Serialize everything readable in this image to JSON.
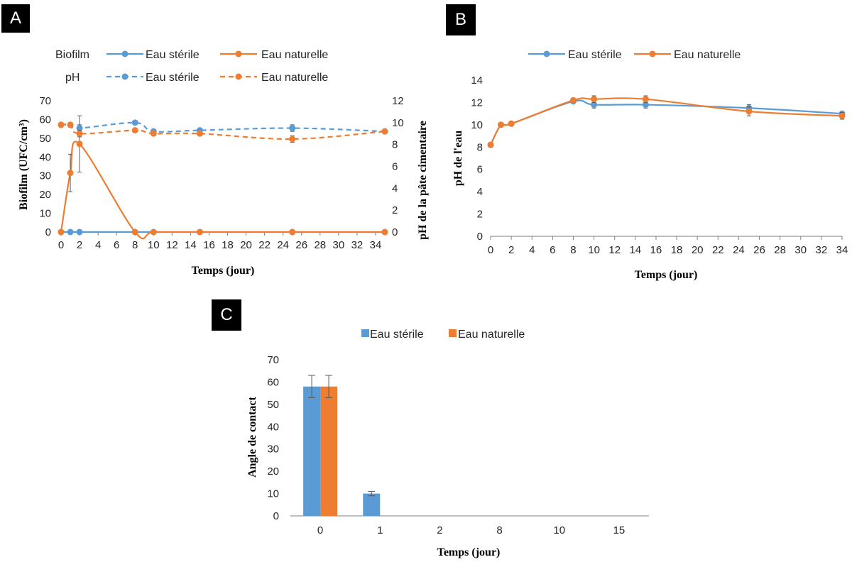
{
  "panels": {
    "a": "A",
    "b": "B",
    "c": "C"
  },
  "colors": {
    "blue": "#5B9BD5",
    "orange": "#ED7D31",
    "axis": "#7F7F7F",
    "err": "#595959"
  },
  "chart_data": [
    {
      "id": "A",
      "type": "line",
      "xlabel": "Temps (jour)",
      "ylabel": "Biofilm (UFC/cm³)",
      "y2label": "pH de la pâte cimentaire",
      "xlim": [
        0,
        35
      ],
      "ylim": [
        0,
        70
      ],
      "y2lim": [
        0,
        12
      ],
      "xticks": [
        "0",
        "2",
        "4",
        "6",
        "8",
        "10",
        "12",
        "14",
        "16",
        "18",
        "20",
        "22",
        "24",
        "26",
        "28",
        "30",
        "32",
        "34"
      ],
      "yticks": [
        "0",
        "10",
        "20",
        "30",
        "40",
        "50",
        "60",
        "70"
      ],
      "y2ticks": [
        "0",
        "2",
        "4",
        "6",
        "8",
        "10",
        "12"
      ],
      "legend_groups": {
        "biofilm": "Biofilm",
        "ph": "pH"
      },
      "series_names": {
        "sterile": "Eau stérile",
        "naturelle": "Eau naturelle"
      },
      "series": [
        {
          "name": "Eau stérile",
          "group": "Biofilm",
          "axis": "left",
          "style": "solid",
          "color": "#5B9BD5",
          "x": [
            0,
            1,
            2,
            8,
            10,
            15,
            25,
            35
          ],
          "y": [
            0,
            0,
            0,
            0,
            0,
            0,
            0,
            0
          ],
          "err": [
            0,
            0,
            0,
            0,
            0,
            0,
            0,
            0
          ]
        },
        {
          "name": "Eau naturelle",
          "group": "Biofilm",
          "axis": "left",
          "style": "solid",
          "color": "#ED7D31",
          "x": [
            0,
            1,
            2,
            8,
            10,
            15,
            25,
            35
          ],
          "y": [
            0,
            31.5,
            47,
            0,
            0,
            0,
            0,
            0
          ],
          "err": [
            0,
            10,
            15,
            0,
            0,
            0,
            0,
            0
          ]
        },
        {
          "name": "Eau stérile",
          "group": "pH",
          "axis": "right",
          "style": "dashed",
          "color": "#5B9BD5",
          "x": [
            0,
            1,
            2,
            8,
            10,
            15,
            25,
            35
          ],
          "y": [
            9.8,
            9.8,
            9.5,
            10.0,
            9.2,
            9.3,
            9.5,
            9.2
          ],
          "err": [
            0,
            0,
            0.3,
            0,
            0.2,
            0.1,
            0.3,
            0
          ]
        },
        {
          "name": "Eau naturelle",
          "group": "pH",
          "axis": "right",
          "style": "dashed",
          "color": "#ED7D31",
          "x": [
            0,
            1,
            2,
            8,
            10,
            15,
            25,
            35
          ],
          "y": [
            9.8,
            9.8,
            9.0,
            9.3,
            9.0,
            9.0,
            8.5,
            9.2
          ],
          "err": [
            0,
            0,
            0.3,
            0.1,
            0.1,
            0.1,
            0.3,
            0
          ]
        }
      ]
    },
    {
      "id": "B",
      "type": "line",
      "xlabel": "Temps (jour)",
      "ylabel": "pH de l'eau",
      "xlim": [
        0,
        34
      ],
      "ylim": [
        0,
        14
      ],
      "xticks": [
        "0",
        "2",
        "4",
        "6",
        "8",
        "10",
        "12",
        "14",
        "16",
        "18",
        "20",
        "22",
        "24",
        "26",
        "28",
        "30",
        "32",
        "34"
      ],
      "yticks": [
        "0",
        "2",
        "4",
        "6",
        "8",
        "10",
        "12",
        "14"
      ],
      "series": [
        {
          "name": "Eau stérile",
          "color": "#5B9BD5",
          "x": [
            0,
            1,
            2,
            8,
            10,
            15,
            25,
            34
          ],
          "y": [
            8.2,
            10.0,
            10.1,
            12.1,
            11.8,
            11.8,
            11.5,
            11.0
          ],
          "err": [
            0,
            0,
            0,
            0.1,
            0.3,
            0.3,
            0.3,
            0.2
          ]
        },
        {
          "name": "Eau naturelle",
          "color": "#ED7D31",
          "x": [
            0,
            1,
            2,
            8,
            10,
            15,
            25,
            34
          ],
          "y": [
            8.2,
            10.0,
            10.1,
            12.2,
            12.3,
            12.3,
            11.2,
            10.8
          ],
          "err": [
            0,
            0,
            0,
            0.1,
            0.3,
            0.3,
            0.4,
            0.3
          ]
        }
      ]
    },
    {
      "id": "C",
      "type": "bar",
      "xlabel": "Temps (jour)",
      "ylabel": "Angle de contact",
      "categories": [
        "0",
        "1",
        "2",
        "8",
        "10",
        "15"
      ],
      "ylim": [
        0,
        70
      ],
      "yticks": [
        "0",
        "10",
        "20",
        "30",
        "40",
        "50",
        "60",
        "70"
      ],
      "series": [
        {
          "name": "Eau stérile",
          "color": "#5B9BD5",
          "values": [
            58,
            10,
            0,
            0,
            0,
            0
          ],
          "err": [
            5,
            1,
            0,
            0,
            0,
            0
          ]
        },
        {
          "name": "Eau naturelle",
          "color": "#ED7D31",
          "values": [
            58,
            0,
            0,
            0,
            0,
            0
          ],
          "err": [
            5,
            0,
            0,
            0,
            0,
            0
          ]
        }
      ]
    }
  ]
}
